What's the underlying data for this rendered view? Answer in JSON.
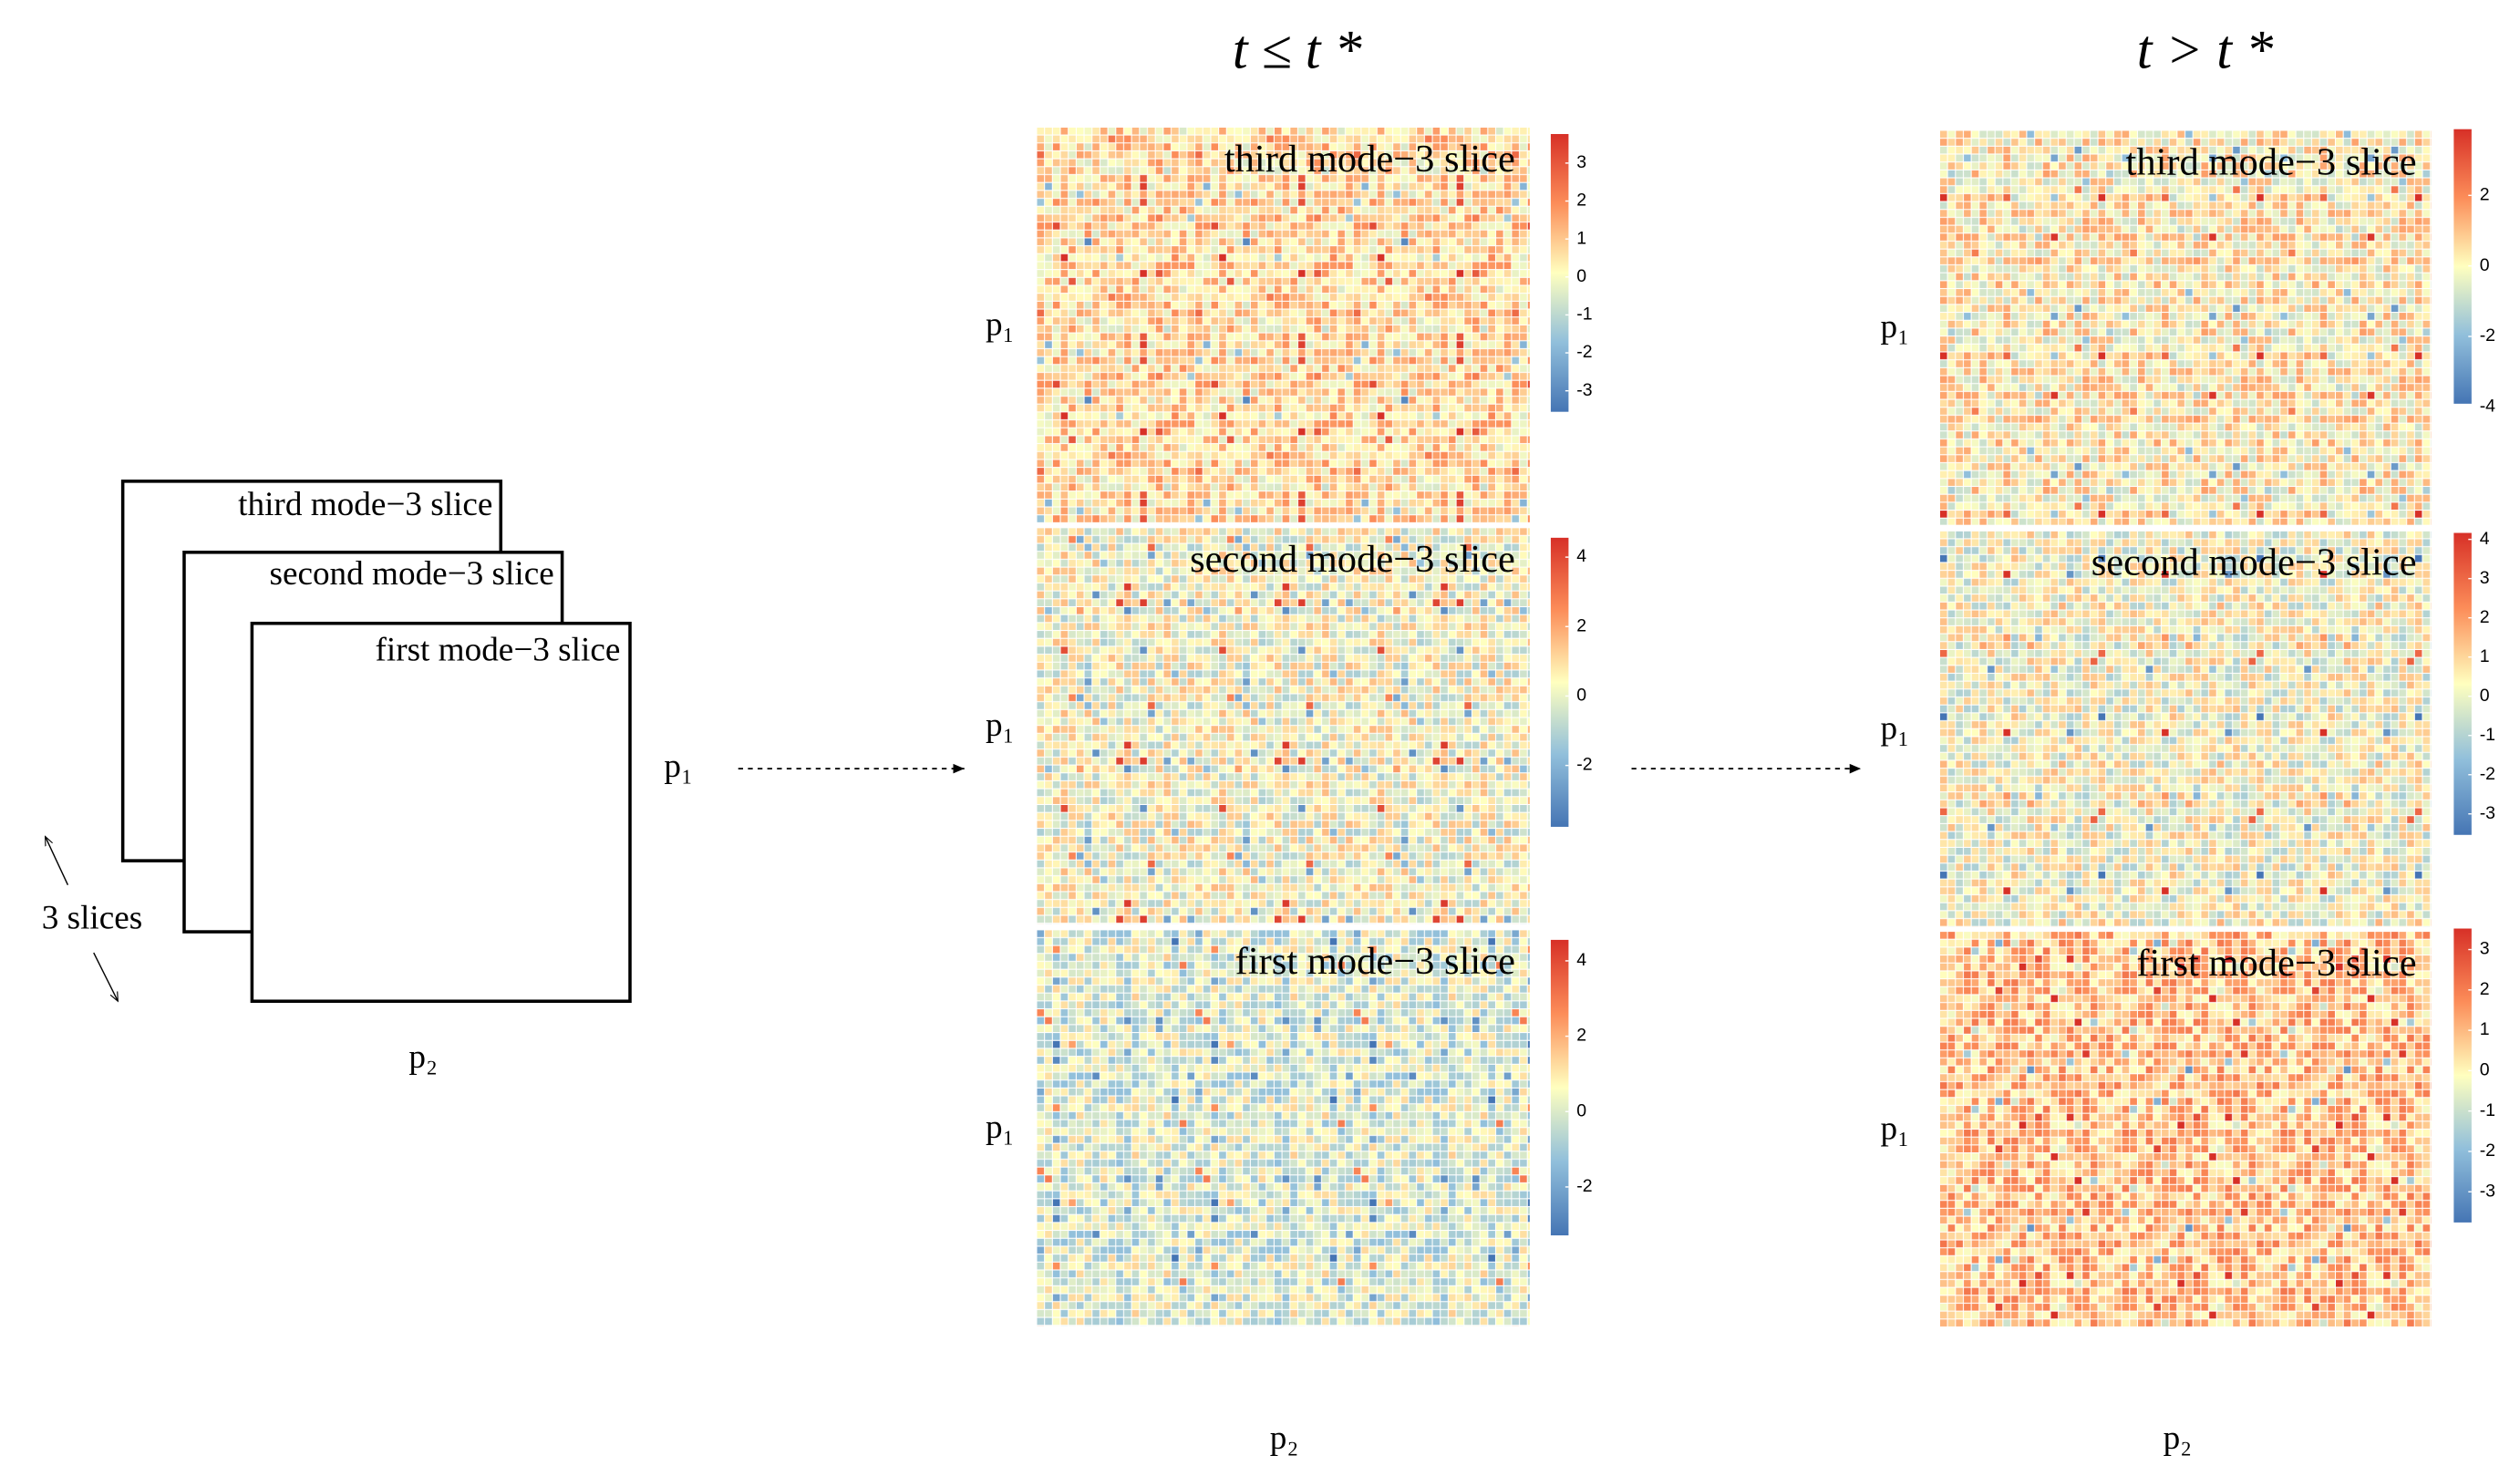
{
  "schematic": {
    "slices": [
      "third mode−3 slice",
      "second mode−3 slice",
      "first mode−3 slice"
    ],
    "count_label": "3 slices",
    "row_label": "p₁",
    "col_label": "p₂"
  },
  "panels": [
    {
      "title": "t ≤ t *",
      "col_label": "p₂",
      "heatmaps": [
        {
          "label": "third mode−3 slice",
          "row_label": "p₁",
          "colorbar_ticks": [
            "3",
            "2",
            "1",
            "0",
            "-1",
            "-2",
            "-3"
          ]
        },
        {
          "label": "second mode−3 slice",
          "row_label": "p₁",
          "colorbar_ticks": [
            "4",
            "2",
            "0",
            "-2"
          ]
        },
        {
          "label": "first mode−3 slice",
          "row_label": "p₁",
          "colorbar_ticks": [
            "4",
            "2",
            "0",
            "-2"
          ]
        }
      ]
    },
    {
      "title": "t > t *",
      "col_label": "p₂",
      "heatmaps": [
        {
          "label": "third mode−3 slice",
          "row_label": "p₁",
          "colorbar_ticks": [
            "2",
            "0",
            "-2",
            "-4"
          ]
        },
        {
          "label": "second mode−3 slice",
          "row_label": "p₁",
          "colorbar_ticks": [
            "4",
            "3",
            "2",
            "1",
            "0",
            "-1",
            "-2",
            "-3"
          ]
        },
        {
          "label": "first mode−3 slice",
          "row_label": "p₁",
          "colorbar_ticks": [
            "3",
            "2",
            "1",
            "0",
            "-1",
            "-2",
            "-3"
          ]
        }
      ]
    }
  ]
}
